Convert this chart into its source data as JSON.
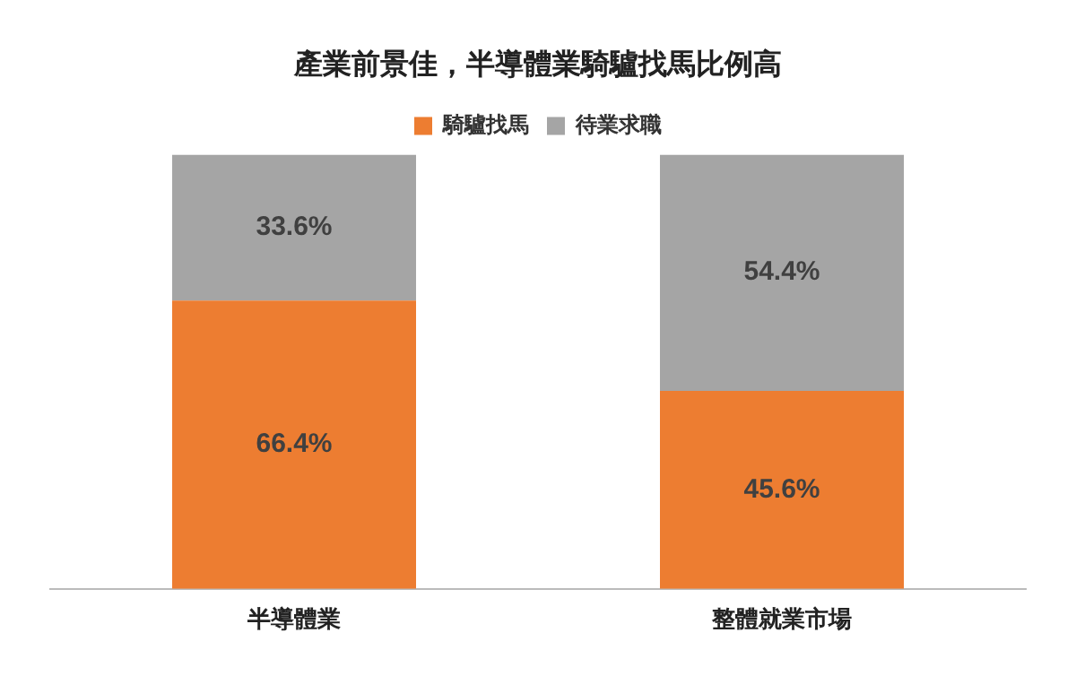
{
  "chart_data": {
    "type": "bar",
    "title": "產業前景佳，半導體業騎驢找馬比例高",
    "categories": [
      "半導體業",
      "整體就業市場"
    ],
    "stacked": true,
    "legend": "top",
    "grid": false,
    "series": [
      {
        "name": "騎驢找馬",
        "color": "#ed7d31",
        "values": [
          66.4,
          45.6
        ],
        "value_labels": [
          "66.4%",
          "45.6%"
        ]
      },
      {
        "name": "待業求職",
        "color": "#a5a5a5",
        "values": [
          33.6,
          54.4
        ],
        "value_labels": [
          "33.6%",
          "54.4%"
        ]
      }
    ]
  }
}
